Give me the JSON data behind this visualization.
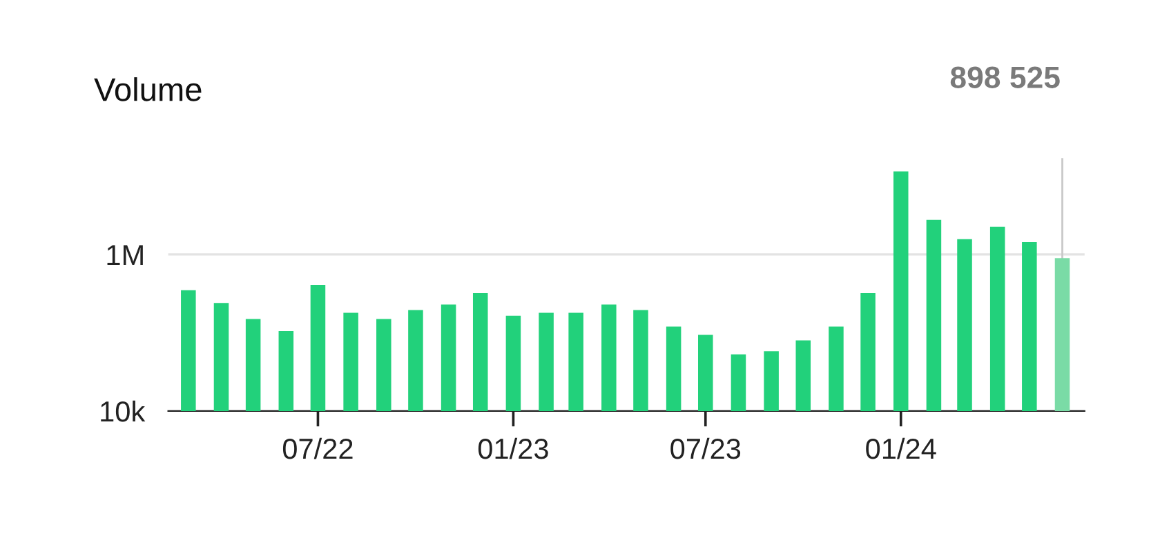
{
  "chart_data": {
    "type": "bar",
    "title": "Volume",
    "x": [
      "2022-03",
      "2022-04",
      "2022-05",
      "2022-06",
      "2022-07",
      "2022-08",
      "2022-09",
      "2022-10",
      "2022-11",
      "2022-12",
      "2023-01",
      "2023-02",
      "2023-03",
      "2023-04",
      "2023-05",
      "2023-06",
      "2023-07",
      "2023-08",
      "2023-09",
      "2023-10",
      "2023-11",
      "2023-12",
      "2024-01",
      "2024-02",
      "2024-03",
      "2024-04",
      "2024-05",
      "2024-06"
    ],
    "values": [
      350000,
      240000,
      150000,
      105000,
      410000,
      180000,
      150000,
      195000,
      230000,
      320000,
      165000,
      180000,
      180000,
      230000,
      195000,
      120000,
      94000,
      53000,
      58000,
      80000,
      120000,
      320000,
      11500000,
      2770000,
      1570000,
      2260000,
      1440000,
      898525
    ],
    "colors": [
      "#22d17b",
      "#22d17b",
      "#22d17b",
      "#22d17b",
      "#22d17b",
      "#22d17b",
      "#22d17b",
      "#22d17b",
      "#22d17b",
      "#22d17b",
      "#22d17b",
      "#22d17b",
      "#22d17b",
      "#22d17b",
      "#22d17b",
      "#22d17b",
      "#22d17b",
      "#22d17b",
      "#22d17b",
      "#22d17b",
      "#22d17b",
      "#22d17b",
      "#22d17b",
      "#22d17b",
      "#22d17b",
      "#22d17b",
      "#22d17b",
      "#7adba6"
    ],
    "log": "y",
    "ylim": [
      10000,
      17000000
    ],
    "yticks": [
      {
        "value": 10000,
        "label": "10k"
      },
      {
        "value": 1000000,
        "label": "1M"
      }
    ],
    "xlim": [
      "2022-02-10",
      "2024-06-22"
    ],
    "xticks": [
      {
        "value": "2022-07",
        "label": "07/22"
      },
      {
        "value": "2023-01",
        "label": "01/23"
      },
      {
        "value": "2023-07",
        "label": "07/23"
      },
      {
        "value": "2024-01",
        "label": "01/24"
      }
    ],
    "grid": "y",
    "ref_lines": [
      {
        "axis": "x",
        "value": "2024-06",
        "color": "#c8c8c8"
      }
    ],
    "annotations": [
      "898 525"
    ]
  }
}
